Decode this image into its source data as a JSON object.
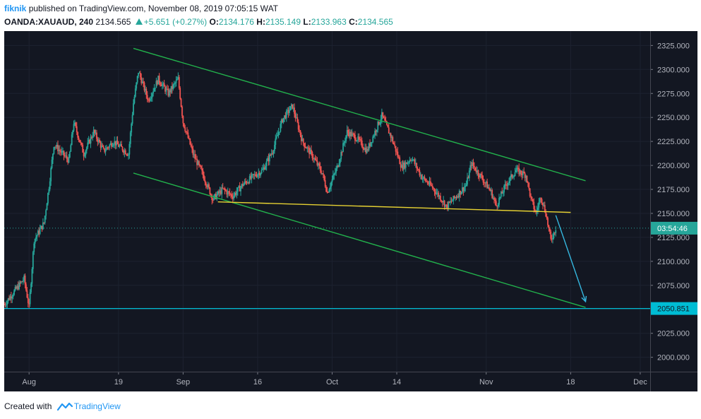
{
  "header": {
    "user": "fiknik",
    "published": "published on TradingView.com, November 08, 2019 07:05:15 WAT",
    "symbol": "OANDA:XAUAUD, 240",
    "price": "2134.565",
    "change": "+5.651 (+0.27%)",
    "o_label": "O:",
    "o_value": "2134.176",
    "h_label": "H:",
    "h_value": "2135.149",
    "l_label": "L:",
    "l_value": "2133.963",
    "c_label": "C:",
    "c_value": "2134.565"
  },
  "footer": {
    "created_with": "Created with",
    "brand": "TradingView"
  },
  "colors": {
    "background": "#131722",
    "up": "#26a69a",
    "down": "#ef5350",
    "channel": "#22b14c",
    "neckline": "#e6d132",
    "support": "#00bcd4",
    "target_arrow": "#35b8e0"
  },
  "chart_data": {
    "type": "candlestick",
    "symbol": "OANDA:XAUAUD",
    "interval": "240",
    "y_ticks": [
      "2325.000",
      "2300.000",
      "2275.000",
      "2250.000",
      "2225.000",
      "2200.000",
      "2175.000",
      "2150.000",
      "2125.000",
      "2100.000",
      "2075.000",
      "2050.000",
      "2025.000",
      "2000.000"
    ],
    "y_range": [
      1985,
      2340
    ],
    "x_ticks": [
      "Aug",
      "19",
      "Sep",
      "16",
      "Oct",
      "14",
      "Nov",
      "18",
      "Dec"
    ],
    "x_tick_days": [
      0,
      18,
      31,
      46,
      61,
      74,
      92,
      109,
      123
    ],
    "x_range": [
      -5,
      125
    ],
    "current_price_label": "03:54:46",
    "current_price": 2134.565,
    "support_label": "2050.851",
    "support_level": 2050.851,
    "price_path": [
      [
        -5,
        2055
      ],
      [
        -1,
        2082
      ],
      [
        0,
        2052
      ],
      [
        1,
        2122
      ],
      [
        3,
        2140
      ],
      [
        4,
        2178
      ],
      [
        5,
        2222
      ],
      [
        8,
        2205
      ],
      [
        9,
        2245
      ],
      [
        11,
        2212
      ],
      [
        13,
        2235
      ],
      [
        15,
        2215
      ],
      [
        17,
        2225
      ],
      [
        20,
        2212
      ],
      [
        21,
        2265
      ],
      [
        22,
        2298
      ],
      [
        24,
        2268
      ],
      [
        26,
        2290
      ],
      [
        28,
        2275
      ],
      [
        30,
        2290
      ],
      [
        31,
        2245
      ],
      [
        33,
        2212
      ],
      [
        35,
        2190
      ],
      [
        37,
        2165
      ],
      [
        39,
        2175
      ],
      [
        41,
        2168
      ],
      [
        43,
        2180
      ],
      [
        45,
        2188
      ],
      [
        47,
        2195
      ],
      [
        49,
        2215
      ],
      [
        51,
        2248
      ],
      [
        53,
        2262
      ],
      [
        55,
        2225
      ],
      [
        57,
        2210
      ],
      [
        59,
        2192
      ],
      [
        60,
        2172
      ],
      [
        62,
        2198
      ],
      [
        64,
        2235
      ],
      [
        66,
        2228
      ],
      [
        68,
        2215
      ],
      [
        70,
        2240
      ],
      [
        71,
        2252
      ],
      [
        73,
        2228
      ],
      [
        75,
        2198
      ],
      [
        77,
        2208
      ],
      [
        79,
        2188
      ],
      [
        81,
        2178
      ],
      [
        83,
        2165
      ],
      [
        84,
        2157
      ],
      [
        86,
        2168
      ],
      [
        88,
        2180
      ],
      [
        89,
        2202
      ],
      [
        91,
        2188
      ],
      [
        93,
        2172
      ],
      [
        94,
        2158
      ],
      [
        96,
        2180
      ],
      [
        98,
        2195
      ],
      [
        100,
        2190
      ],
      [
        101,
        2165
      ],
      [
        102,
        2150
      ],
      [
        103,
        2168
      ],
      [
        104,
        2150
      ],
      [
        105,
        2122
      ],
      [
        106,
        2134.565
      ]
    ],
    "drawings": [
      {
        "name": "channel-upper",
        "from": [
          21,
          2322
        ],
        "to": [
          112,
          2184
        ]
      },
      {
        "name": "channel-lower",
        "from": [
          21,
          2192
        ],
        "to": [
          112,
          2052
        ]
      },
      {
        "name": "neckline",
        "from": [
          38,
          2162
        ],
        "to": [
          109,
          2151
        ]
      },
      {
        "name": "target-arrow",
        "from": [
          106,
          2148
        ],
        "to": [
          112,
          2058
        ]
      }
    ]
  }
}
